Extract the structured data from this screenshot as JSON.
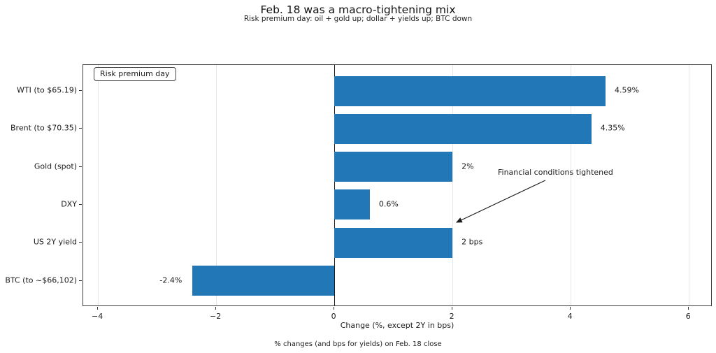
{
  "header": {
    "title": "Feb. 18 was a macro-tightening mix",
    "subtitle": "Risk premium day: oil + gold up; dollar + yields up; BTC down"
  },
  "footer": {
    "caption": "% changes (and bps for yields) on Feb. 18 close"
  },
  "chart_data": {
    "type": "bar",
    "orientation": "horizontal",
    "title": "Feb. 18 was a macro-tightening mix",
    "subtitle": "Risk premium day: oil + gold up; dollar + yields up; BTC down",
    "categories": [
      "WTI (to $65.19)",
      "Brent (to $70.35)",
      "Gold (spot)",
      "DXY",
      "US 2Y yield",
      "BTC (to ~$66,102)"
    ],
    "values": [
      4.59,
      4.35,
      2,
      0.6,
      2,
      -2.4
    ],
    "value_labels": [
      "4.59%",
      "4.35%",
      "2%",
      "0.6%",
      "2 bps",
      "-2.4%"
    ],
    "bar_color": "#2277b6",
    "xlabel": "Change (%, except 2Y in bps)",
    "xlim": [
      -4.25,
      6.4
    ],
    "xticks": [
      -4,
      -2,
      0,
      2,
      4,
      6
    ],
    "xtick_labels": [
      "−4",
      "−2",
      "0",
      "2",
      "4",
      "6"
    ],
    "grid": "vertical",
    "grid_color": "#e7e7e7",
    "zero_line": true,
    "legend": {
      "label": "Risk premium day",
      "position": "upper-left"
    },
    "annotation": {
      "text": "Financial conditions tightened",
      "points_to": "US 2Y yield"
    }
  }
}
